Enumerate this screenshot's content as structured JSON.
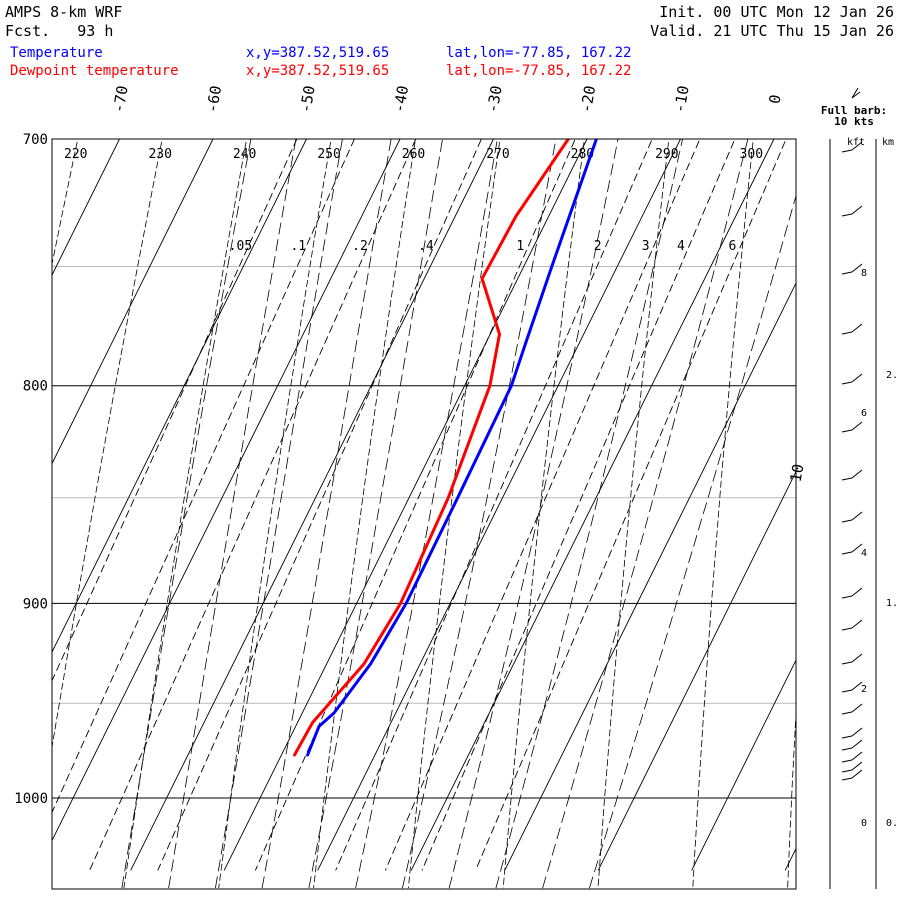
{
  "header": {
    "model": "AMPS 8-km WRF",
    "fcst_label": "Fcst.",
    "fcst_hours": "93 h",
    "init_label": "Init.",
    "init_time": "00 UTC Mon 12 Jan 26",
    "valid_label": "Valid.",
    "valid_time": "21 UTC Thu 15 Jan 26",
    "temperature_label": "Temperature",
    "dewpoint_label": "Dewpoint temperature",
    "xy": "x,y=387.52,519.65",
    "latlon": "lat,lon=-77.85, 167.22"
  },
  "barb_legend": {
    "line1": "Full barb:",
    "line2": "10 kts",
    "kft_label": "kft",
    "km_label": "km"
  },
  "colors": {
    "temperature": "#0000ff",
    "dewpoint": "#ff0000",
    "header_text": "#000000",
    "isobar_major": "#000000",
    "isobar_minor": "#bbbbbb"
  },
  "chart_data": {
    "type": "line",
    "title": "",
    "xlabel": "",
    "ylabel": "",
    "y_scale": "log-pressure",
    "ylim": [
      1040,
      700
    ],
    "pressure_labels": [
      "700",
      "800",
      "900",
      "1000"
    ],
    "isotherm_labels": [
      "-70",
      "-60",
      "-50",
      "-40",
      "-30",
      "-20",
      "-10",
      "0",
      "10"
    ],
    "theta_labels": [
      "220",
      "230",
      "240",
      "250",
      "260",
      "270",
      "280",
      "290",
      "300"
    ],
    "mixing_ratio_labels": [
      ".05",
      ".1",
      ".2",
      ".4",
      "1",
      "2",
      "3",
      "4",
      "6"
    ],
    "height_labels_kft": [
      "8",
      "6",
      "4",
      "2",
      "0"
    ],
    "height_labels_km": [
      "2.",
      "1.",
      "0."
    ],
    "series": [
      {
        "name": "Temperature",
        "color": "#0000ff",
        "points": [
          {
            "p": 700,
            "t": -19.0
          },
          {
            "p": 750,
            "t": -17.0
          },
          {
            "p": 780,
            "t": -15.8
          },
          {
            "p": 800,
            "t": -15.0
          },
          {
            "p": 850,
            "t": -14.8
          },
          {
            "p": 900,
            "t": -14.7
          },
          {
            "p": 930,
            "t": -15.3
          },
          {
            "p": 955,
            "t": -16.6
          },
          {
            "p": 962,
            "t": -17.5
          },
          {
            "p": 977,
            "t": -17.2
          }
        ]
      },
      {
        "name": "Dewpoint temperature",
        "color": "#ff0000",
        "points": [
          {
            "p": 700,
            "t": -22.0
          },
          {
            "p": 730,
            "t": -23.5
          },
          {
            "p": 755,
            "t": -23.8
          },
          {
            "p": 778,
            "t": -19.0
          },
          {
            "p": 800,
            "t": -17.3
          },
          {
            "p": 850,
            "t": -15.8
          },
          {
            "p": 900,
            "t": -15.3
          },
          {
            "p": 930,
            "t": -16.0
          },
          {
            "p": 960,
            "t": -18.4
          },
          {
            "p": 977,
            "t": -18.6
          }
        ]
      }
    ]
  }
}
